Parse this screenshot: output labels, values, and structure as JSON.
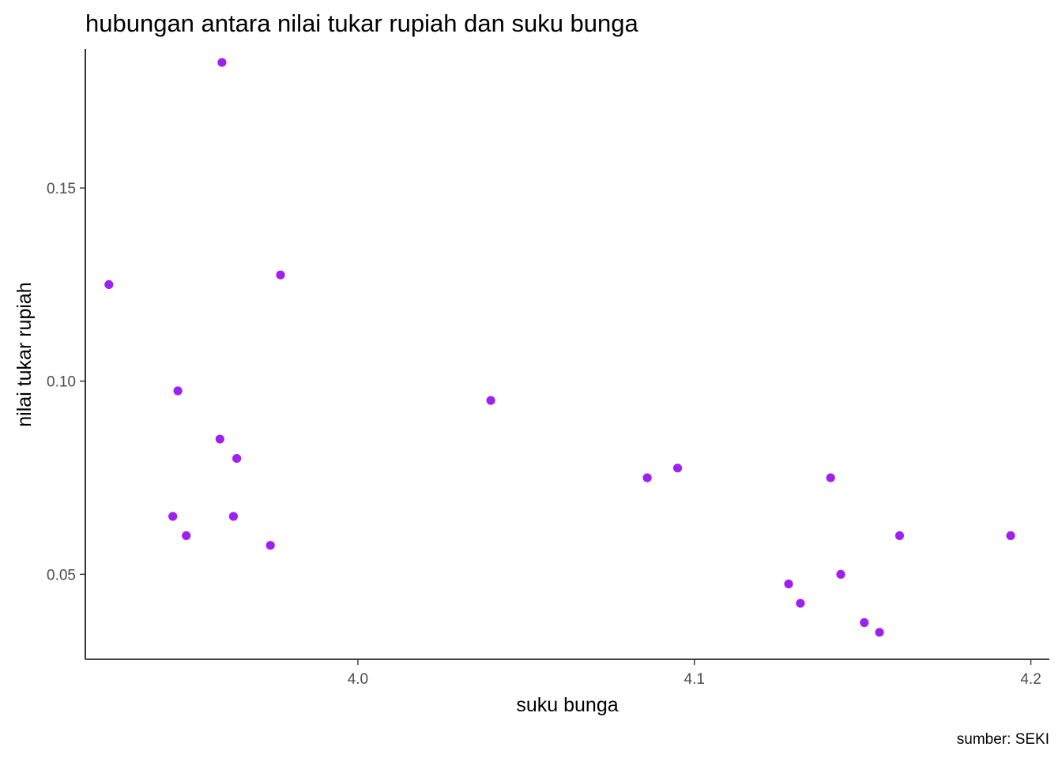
{
  "chart_data": {
    "type": "scatter",
    "title": "hubungan antara nilai tukar rupiah dan suku bunga",
    "xlabel": "suku bunga",
    "ylabel": "nilai tukar rupiah",
    "caption": "sumber: SEKI",
    "xlim": [
      3.919,
      4.2055
    ],
    "ylim": [
      0.028,
      0.186
    ],
    "x_ticks": [
      4.0,
      4.1,
      4.2
    ],
    "x_tick_labels": [
      "4.0",
      "4.1",
      "4.2"
    ],
    "y_ticks": [
      0.05,
      0.1,
      0.15
    ],
    "y_tick_labels": [
      "0.05",
      "0.10",
      "0.15"
    ],
    "grid": false,
    "point_color": "#A020F0",
    "points": [
      {
        "x": 3.926,
        "y": 0.125
      },
      {
        "x": 3.945,
        "y": 0.065
      },
      {
        "x": 3.9465,
        "y": 0.0975
      },
      {
        "x": 3.949,
        "y": 0.06
      },
      {
        "x": 3.959,
        "y": 0.085
      },
      {
        "x": 3.9596,
        "y": 0.1825
      },
      {
        "x": 3.963,
        "y": 0.065
      },
      {
        "x": 3.964,
        "y": 0.08
      },
      {
        "x": 3.974,
        "y": 0.0575
      },
      {
        "x": 3.977,
        "y": 0.1275
      },
      {
        "x": 4.0395,
        "y": 0.095
      },
      {
        "x": 4.086,
        "y": 0.075
      },
      {
        "x": 4.095,
        "y": 0.0775
      },
      {
        "x": 4.128,
        "y": 0.0475
      },
      {
        "x": 4.1315,
        "y": 0.0425
      },
      {
        "x": 4.1405,
        "y": 0.075
      },
      {
        "x": 4.1435,
        "y": 0.05
      },
      {
        "x": 4.1505,
        "y": 0.0375
      },
      {
        "x": 4.155,
        "y": 0.035
      },
      {
        "x": 4.161,
        "y": 0.06
      },
      {
        "x": 4.194,
        "y": 0.06
      }
    ]
  }
}
